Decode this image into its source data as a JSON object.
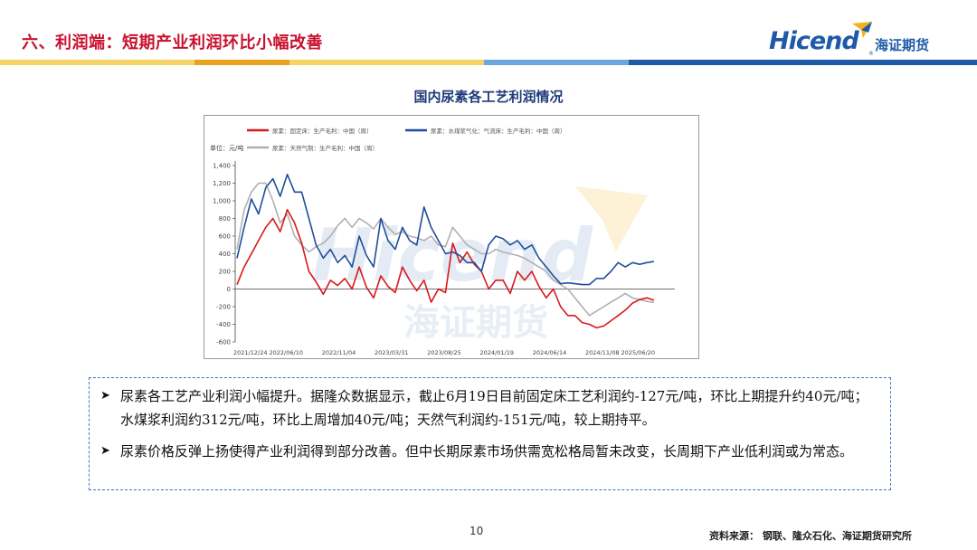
{
  "slide": {
    "title": "六、利润端：短期产业利润环比小幅改善",
    "page_number": "10",
    "source": "资料来源：  钢联、隆众石化、海证期货研究所"
  },
  "logo": {
    "word": "Hicend",
    "reg": "®",
    "cn": "海证期货",
    "watermark_word": "Hicend",
    "watermark_cn": "海证期货"
  },
  "colors": {
    "title": "#c8102e",
    "brand_blue": "#1e5aa8",
    "band": [
      "#f2c94c",
      "#e6a11d",
      "#f2c94c",
      "#5b9bd5",
      "#1e5aa8"
    ],
    "fixed_bed": "#d7191c",
    "coal_water": "#1f4e9c",
    "natural_gas": "#b0b0b0"
  },
  "chart_data": {
    "type": "line",
    "title": "国内尿素各工艺利润情况",
    "unit": "单位：元/吨",
    "ylim": [
      -600,
      1400
    ],
    "yticks": [
      -600,
      -400,
      -200,
      0,
      200,
      400,
      600,
      800,
      1000,
      1200,
      1400
    ],
    "ytick_labels": [
      "-600",
      "-400",
      "-200",
      "0",
      "200",
      "400",
      "600",
      "800",
      "1,000",
      "1,200",
      "1,400"
    ],
    "xtick_labels": [
      "2021/12/24",
      "2022/06/10",
      "2022/11/04",
      "2023/03/31",
      "2023/08/25",
      "2024/01/19",
      "2024/06/14",
      "2024/11/08",
      "2025/06/20"
    ],
    "grid": false,
    "legend_position": "top",
    "series": [
      {
        "name": "尿素：固定床：生产毛利：中国（周）",
        "color": "#d7191c",
        "values": [
          50,
          250,
          400,
          550,
          700,
          800,
          650,
          900,
          750,
          520,
          200,
          80,
          -60,
          100,
          40,
          120,
          0,
          250,
          20,
          -100,
          150,
          30,
          -40,
          250,
          100,
          -20,
          100,
          -150,
          0,
          -40,
          520,
          300,
          420,
          280,
          200,
          0,
          100,
          100,
          -50,
          200,
          100,
          200,
          30,
          -100,
          0,
          -200,
          -300,
          -300,
          -380,
          -400,
          -440,
          -420,
          -360,
          -300,
          -240,
          -160,
          -120,
          -100,
          -127
        ]
      },
      {
        "name": "尿素：水煤浆气化：气流床：生产毛利：中国（周）",
        "color": "#1f4e9c",
        "values": [
          350,
          700,
          1020,
          850,
          1150,
          1250,
          1050,
          1300,
          1100,
          1100,
          800,
          500,
          350,
          450,
          300,
          380,
          250,
          600,
          380,
          250,
          800,
          550,
          450,
          700,
          550,
          500,
          930,
          700,
          550,
          400,
          420,
          380,
          300,
          300,
          200,
          500,
          600,
          570,
          500,
          550,
          450,
          500,
          350,
          250,
          150,
          60,
          70,
          60,
          50,
          50,
          120,
          120,
          200,
          300,
          250,
          300,
          280,
          300,
          312
        ]
      },
      {
        "name": "尿素：天然气制：生产毛利：中国（周）",
        "color": "#b0b0b0",
        "values": [
          450,
          900,
          1100,
          1200,
          1200,
          1000,
          750,
          850,
          600,
          500,
          420,
          480,
          520,
          600,
          720,
          800,
          700,
          800,
          750,
          680,
          800,
          700,
          620,
          650,
          600,
          580,
          550,
          600,
          500,
          480,
          700,
          600,
          500,
          450,
          400,
          400,
          450,
          420,
          400,
          380,
          350,
          300,
          250,
          200,
          100,
          50,
          0,
          -100,
          -200,
          -300,
          -250,
          -200,
          -150,
          -100,
          -50,
          -100,
          -120,
          -140,
          -151
        ]
      }
    ]
  },
  "notes": [
    "尿素各工艺产业利润小幅提升。据隆众数据显示，截止6月19日目前固定床工艺利润约-127元/吨，环比上期提升约40元/吨；水煤浆利润约312元/吨，环比上周增加40元/吨；天然气利润约-151元/吨，较上期持平。",
    "尿素价格反弹上扬使得产业利润得到部分改善。但中长期尿素市场供需宽松格局暂未改变，长周期下产业低利润或为常态。"
  ]
}
